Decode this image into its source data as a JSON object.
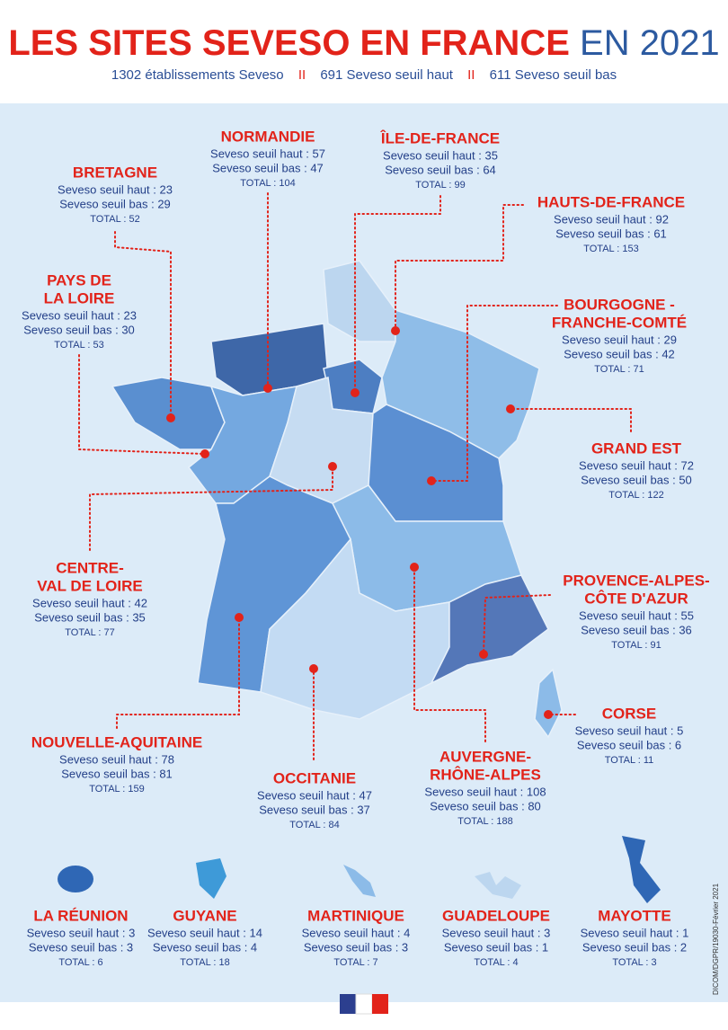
{
  "header": {
    "title": "LES SITES SEVESO EN FRANCE",
    "title_year": "EN 2021",
    "subtitle": [
      "1302 établissements Seveso",
      "691 Seveso seuil haut",
      "611 Seveso seuil bas"
    ],
    "separator": "II"
  },
  "regions": [
    {
      "name": [
        "NORMANDIE"
      ],
      "high": "Seveso seuil haut : 57",
      "low": "Seveso seuil bas : 47",
      "total": "TOTAL : 104"
    },
    {
      "name": [
        "ÎLE-DE-FRANCE"
      ],
      "high": "Seveso seuil haut : 35",
      "low": "Seveso seuil bas : 64",
      "total": "TOTAL : 99"
    },
    {
      "name": [
        "BRETAGNE"
      ],
      "high": "Seveso seuil haut : 23",
      "low": "Seveso seuil bas : 29",
      "total": "TOTAL : 52"
    },
    {
      "name": [
        "HAUTS-DE-FRANCE"
      ],
      "high": "Seveso seuil haut : 92",
      "low": "Seveso seuil bas : 61",
      "total": "TOTAL : 153"
    },
    {
      "name": [
        "PAYS DE",
        "LA LOIRE"
      ],
      "high": "Seveso seuil haut : 23",
      "low": "Seveso seuil bas : 30",
      "total": "TOTAL : 53"
    },
    {
      "name": [
        "BOURGOGNE -",
        "FRANCHE-COMTÉ"
      ],
      "high": "Seveso seuil haut : 29",
      "low": "Seveso seuil bas : 42",
      "total": "TOTAL : 71"
    },
    {
      "name": [
        "GRAND EST"
      ],
      "high": "Seveso seuil haut : 72",
      "low": "Seveso seuil bas : 50",
      "total": "TOTAL : 122"
    },
    {
      "name": [
        "CENTRE-",
        "VAL DE LOIRE"
      ],
      "high": "Seveso seuil haut : 42",
      "low": "Seveso seuil bas : 35",
      "total": "TOTAL : 77"
    },
    {
      "name": [
        "PROVENCE-ALPES-",
        "CÔTE D'AZUR"
      ],
      "high": "Seveso seuil haut : 55",
      "low": "Seveso seuil bas : 36",
      "total": "TOTAL : 91"
    },
    {
      "name": [
        "NOUVELLE-AQUITAINE"
      ],
      "high": "Seveso seuil haut : 78",
      "low": "Seveso seuil bas : 81",
      "total": "TOTAL : 159"
    },
    {
      "name": [
        "CORSE"
      ],
      "high": "Seveso seuil haut : 5",
      "low": "Seveso seuil bas : 6",
      "total": "TOTAL : 11"
    },
    {
      "name": [
        "OCCITANIE"
      ],
      "high": "Seveso seuil haut : 47",
      "low": "Seveso seuil bas : 37",
      "total": "TOTAL : 84"
    },
    {
      "name": [
        "AUVERGNE-",
        "RHÔNE-ALPES"
      ],
      "high": "Seveso seuil haut : 108",
      "low": "Seveso seuil bas : 80",
      "total": "TOTAL : 188"
    }
  ],
  "overseas": [
    {
      "name": [
        "LA RÉUNION"
      ],
      "high": "Seveso seuil haut : 3",
      "low": "Seveso seuil bas : 3",
      "total": "TOTAL : 6"
    },
    {
      "name": [
        "GUYANE"
      ],
      "high": "Seveso seuil haut : 14",
      "low": "Seveso seuil bas : 4",
      "total": "TOTAL : 18"
    },
    {
      "name": [
        "MARTINIQUE"
      ],
      "high": "Seveso seuil haut : 4",
      "low": "Seveso seuil bas : 3",
      "total": "TOTAL : 7"
    },
    {
      "name": [
        "GUADELOUPE"
      ],
      "high": "Seveso seuil haut : 3",
      "low": "Seveso seuil bas : 1",
      "total": "TOTAL : 4"
    },
    {
      "name": [
        "MAYOTTE"
      ],
      "high": "Seveso seuil haut : 1",
      "low": "Seveso seuil bas : 2",
      "total": "TOTAL : 3"
    }
  ],
  "credit": "DICOM/DGPR/19030-Février 2021"
}
